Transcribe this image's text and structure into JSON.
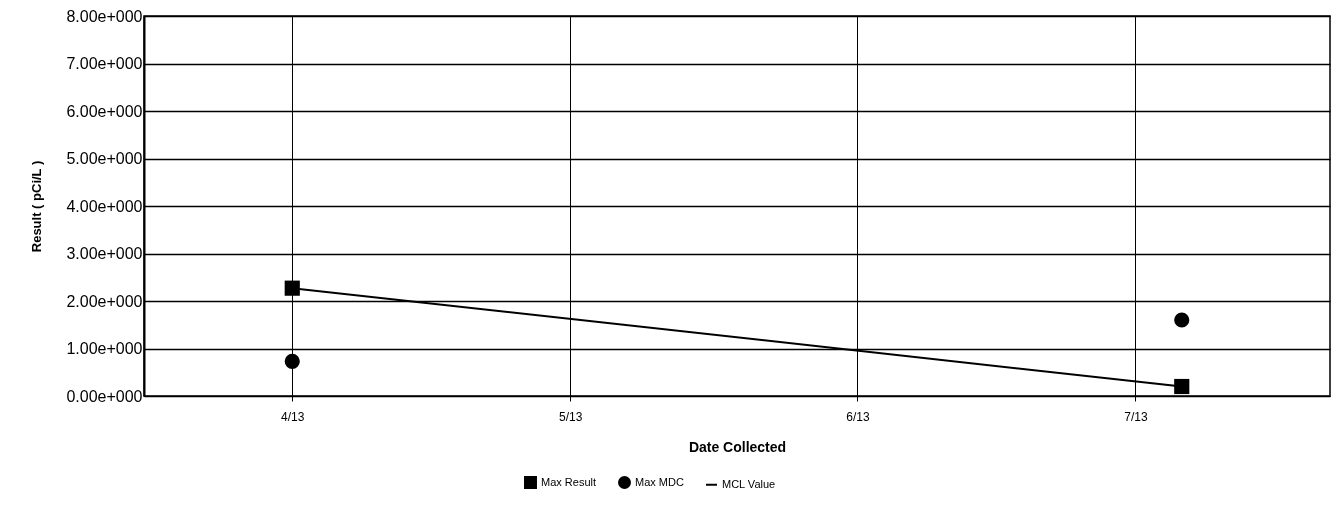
{
  "chart_data": {
    "type": "line",
    "xlabel": "Date Collected",
    "ylabel": "Result ( pCi/L )",
    "x": [
      "2013-04-01",
      "2013-07-06"
    ],
    "series": [
      {
        "name": "Max Result",
        "type": "line",
        "marker": "square",
        "color": "#000000",
        "values": [
          2.27,
          0.2
        ]
      },
      {
        "name": "Max MDC",
        "type": "scatter",
        "marker": "circle",
        "color": "#000000",
        "values": [
          0.73,
          1.6
        ]
      },
      {
        "name": "MCL Value",
        "type": "line",
        "marker": "none",
        "color": "#000000",
        "values": [
          null,
          null
        ]
      }
    ],
    "xlim": [
      "2013-03-16",
      "2013-07-22"
    ],
    "xticks": [
      {
        "value": "2013-04-01",
        "label": "4/13"
      },
      {
        "value": "2013-05-01",
        "label": "5/13"
      },
      {
        "value": "2013-06-01",
        "label": "6/13"
      },
      {
        "value": "2013-07-01",
        "label": "7/13"
      }
    ],
    "ylim": [
      0,
      8
    ],
    "yticks": [
      {
        "value": 0,
        "label": "0.00e+000"
      },
      {
        "value": 1,
        "label": "1.00e+000"
      },
      {
        "value": 2,
        "label": "2.00e+000"
      },
      {
        "value": 3,
        "label": "3.00e+000"
      },
      {
        "value": 4,
        "label": "4.00e+000"
      },
      {
        "value": 5,
        "label": "5.00e+000"
      },
      {
        "value": 6,
        "label": "6.00e+000"
      },
      {
        "value": 7,
        "label": "7.00e+000"
      },
      {
        "value": 8,
        "label": "8.00e+000"
      }
    ],
    "grid": true,
    "legend": "bottom"
  }
}
